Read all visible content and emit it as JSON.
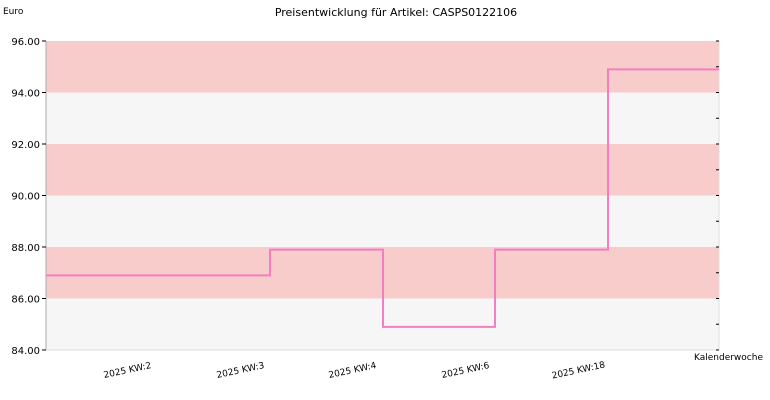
{
  "chart_data": {
    "type": "line",
    "step": true,
    "title": "Preisentwicklung für Artikel: CASPS0122106",
    "ylabel": "Euro",
    "xlabel": "Kalenderwoche",
    "ylim": [
      84,
      96
    ],
    "y_ticks": [
      "84.00",
      "86.00",
      "88.00",
      "90.00",
      "92.00",
      "94.00",
      "96.00"
    ],
    "categories": [
      "2025 KW:2",
      "2025 KW:3",
      "2025 KW:4",
      "2025 KW:6",
      "2025 KW:18"
    ],
    "series": [
      {
        "values": [
          86.9,
          87.9,
          84.9,
          87.9,
          94.9
        ]
      }
    ],
    "colors": {
      "line": "#f27fc0",
      "band_pink": "#f9cccc",
      "band_gray": "#f6f6f6",
      "axis": "#aaaaaa"
    },
    "grid": false
  }
}
